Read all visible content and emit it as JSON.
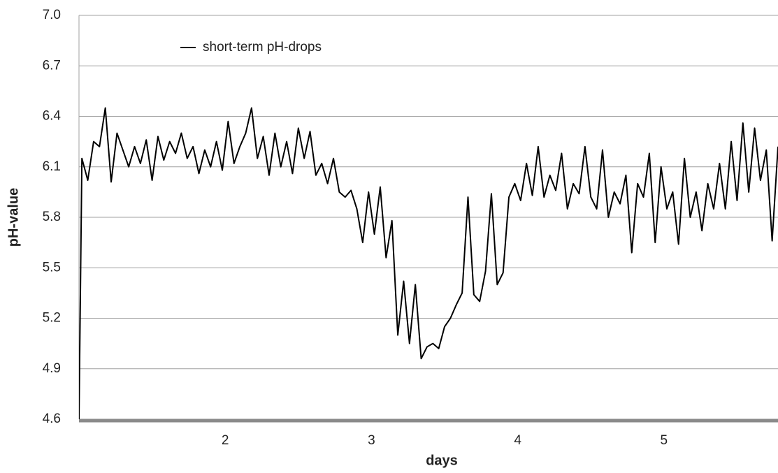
{
  "chart_data": {
    "type": "line",
    "xlabel": "days",
    "ylabel": "pH-value",
    "x": [
      1.0,
      1.02,
      1.06,
      1.1,
      1.14,
      1.18,
      1.22,
      1.26,
      1.3,
      1.34,
      1.38,
      1.42,
      1.46,
      1.5,
      1.54,
      1.58,
      1.62,
      1.66,
      1.7,
      1.74,
      1.78,
      1.82,
      1.86,
      1.9,
      1.94,
      1.98,
      2.02,
      2.06,
      2.1,
      2.14,
      2.18,
      2.22,
      2.26,
      2.3,
      2.34,
      2.38,
      2.42,
      2.46,
      2.5,
      2.54,
      2.58,
      2.62,
      2.66,
      2.7,
      2.74,
      2.78,
      2.82,
      2.86,
      2.9,
      2.94,
      2.98,
      3.02,
      3.06,
      3.1,
      3.14,
      3.18,
      3.22,
      3.26,
      3.3,
      3.34,
      3.38,
      3.42,
      3.46,
      3.5,
      3.54,
      3.58,
      3.62,
      3.66,
      3.7,
      3.74,
      3.78,
      3.82,
      3.86,
      3.9,
      3.94,
      3.98,
      4.02,
      4.06,
      4.1,
      4.14,
      4.18,
      4.22,
      4.26,
      4.3,
      4.34,
      4.38,
      4.42,
      4.46,
      4.5,
      4.54,
      4.58,
      4.62,
      4.66,
      4.7,
      4.74,
      4.78,
      4.82,
      4.86,
      4.9,
      4.94,
      4.98,
      5.02,
      5.06,
      5.1,
      5.14,
      5.18,
      5.22,
      5.26,
      5.3,
      5.34,
      5.38,
      5.42,
      5.46,
      5.5,
      5.54,
      5.58,
      5.62,
      5.66,
      5.7,
      5.74,
      5.78
    ],
    "series": [
      {
        "name": "short-term pH-drops",
        "color": "#000000",
        "values": [
          4.6,
          6.15,
          6.02,
          6.25,
          6.22,
          6.45,
          6.01,
          6.3,
          6.2,
          6.1,
          6.22,
          6.12,
          6.26,
          6.02,
          6.28,
          6.14,
          6.25,
          6.18,
          6.3,
          6.15,
          6.22,
          6.06,
          6.2,
          6.1,
          6.25,
          6.08,
          6.37,
          6.12,
          6.22,
          6.3,
          6.45,
          6.15,
          6.28,
          6.05,
          6.3,
          6.1,
          6.25,
          6.06,
          6.33,
          6.15,
          6.31,
          6.05,
          6.12,
          6.0,
          6.15,
          5.95,
          5.92,
          5.96,
          5.85,
          5.65,
          5.95,
          5.7,
          5.98,
          5.56,
          5.78,
          5.1,
          5.42,
          5.05,
          5.4,
          4.96,
          5.03,
          5.05,
          5.02,
          5.15,
          5.2,
          5.28,
          5.35,
          5.92,
          5.34,
          5.3,
          5.48,
          5.94,
          5.4,
          5.47,
          5.92,
          6.0,
          5.9,
          6.12,
          5.93,
          6.22,
          5.92,
          6.05,
          5.96,
          6.18,
          5.85,
          6.0,
          5.94,
          6.22,
          5.92,
          5.85,
          6.2,
          5.8,
          5.95,
          5.88,
          6.05,
          5.59,
          6.0,
          5.92,
          6.18,
          5.65,
          6.1,
          5.85,
          5.95,
          5.64,
          6.15,
          5.8,
          5.95,
          5.72,
          6.0,
          5.85,
          6.12,
          5.85,
          6.25,
          5.9,
          6.36,
          5.95,
          6.33,
          6.02,
          6.2,
          5.66,
          6.22
        ]
      }
    ],
    "xlim": [
      1.0,
      5.78
    ],
    "xticks": [
      2,
      3,
      4,
      5
    ],
    "ylim": [
      4.6,
      7.0
    ],
    "yticks": [
      4.6,
      4.9,
      5.2,
      5.5,
      5.8,
      6.1,
      6.4,
      6.7,
      {
        "value": 7.0,
        "label": "7.0"
      }
    ],
    "grid": true,
    "legend": "top-left"
  }
}
